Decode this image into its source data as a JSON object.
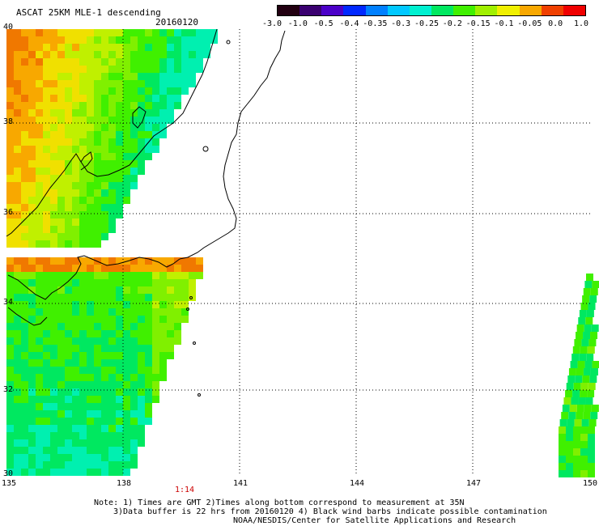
{
  "title": {
    "product": "ASCAT 25KM MLE-1 descending",
    "date": "20160120"
  },
  "colorbar": {
    "labels": [
      "-3.0",
      "-1.0",
      "-0.5",
      "-0.4",
      "-0.35",
      "-0.3",
      "-0.25",
      "-0.2",
      "-0.15",
      "-0.1",
      "-0.05",
      "0.0",
      "1.0"
    ],
    "colors": [
      "#220011",
      "#3a0070",
      "#4b00c8",
      "#0028ff",
      "#0080ff",
      "#00c8ff",
      "#00f0d0",
      "#00e860",
      "#40f000",
      "#a0f000",
      "#f0f000",
      "#f8a800",
      "#f04000",
      "#f00000"
    ]
  },
  "map": {
    "lat_labels": [
      "40",
      "38",
      "36",
      "34",
      "32",
      "30"
    ],
    "lon_labels": [
      "135",
      "138",
      "141",
      "144",
      "147",
      "150"
    ],
    "time_label": "1:14"
  },
  "notes": {
    "line1": "Note: 1) Times are GMT 2)Times along bottom correspond to measurement at 35N",
    "line2": "3)Data buffer is 22 hrs from 20160120 4) Black wind barbs indicate possible contamination",
    "line3": "NOAA/NESDIS/Center for Satellite Applications and Research"
  }
}
